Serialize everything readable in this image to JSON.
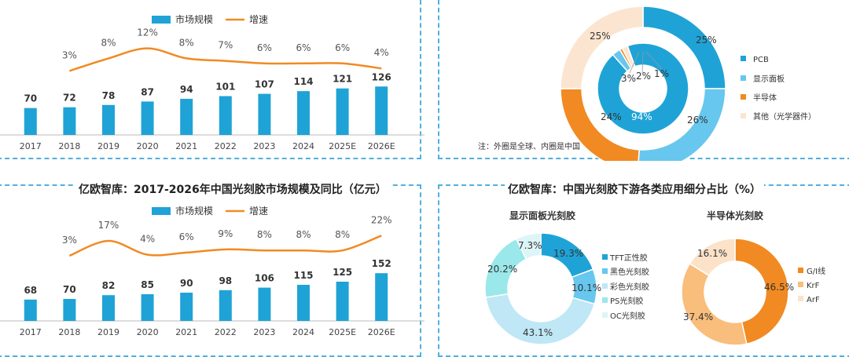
{
  "colors": {
    "bar": "#1fa3d6",
    "line": "#f18a22",
    "pcb": "#1fa3d6",
    "display": "#67c7ee",
    "semi": "#f18a22",
    "other": "#fbe5d0"
  },
  "chart_data": [
    {
      "id": "global-market",
      "type": "bar",
      "title": "",
      "legend": [
        "市场规模",
        "增速"
      ],
      "categories": [
        "2017",
        "2018",
        "2019",
        "2020",
        "2021",
        "2022",
        "2023",
        "2024",
        "2025E",
        "2026E"
      ],
      "series": [
        {
          "name": "市场规模",
          "type": "bar",
          "values": [
            70,
            72,
            78,
            87,
            94,
            101,
            107,
            114,
            121,
            126
          ]
        },
        {
          "name": "增速",
          "type": "line",
          "values": [
            null,
            3,
            8,
            12,
            8,
            7,
            6,
            6,
            6,
            4
          ],
          "labels": [
            "",
            "3%",
            "8%",
            "12%",
            "8%",
            "7%",
            "6%",
            "6%",
            "6%",
            "4%"
          ]
        }
      ]
    },
    {
      "id": "global-vs-china-donut",
      "type": "pie",
      "legend": [
        "PCB",
        "显示面板",
        "半导体",
        "其他（光学器件）"
      ],
      "outer_ring_global": [
        25,
        26,
        24,
        25
      ],
      "outer_labels": [
        "25%",
        "26%",
        "24%",
        "25%"
      ],
      "inner_ring_china": [
        94,
        3,
        1,
        2
      ],
      "inner_labels": [
        "94%",
        "3%",
        "1%",
        "2%"
      ],
      "note": "注：外圈是全球、内圈是中国"
    },
    {
      "id": "china-market",
      "type": "bar",
      "title": "亿欧智库：2017-2026年中国光刻胶市场规模及同比（亿元）",
      "legend": [
        "市场规模",
        "增速"
      ],
      "categories": [
        "2017",
        "2018",
        "2019",
        "2020",
        "2021",
        "2022",
        "2023",
        "2024",
        "2025E",
        "2026E"
      ],
      "series": [
        {
          "name": "市场规模",
          "type": "bar",
          "values": [
            68,
            70,
            82,
            85,
            90,
            98,
            106,
            115,
            125,
            152
          ]
        },
        {
          "name": "增速",
          "type": "line",
          "values": [
            null,
            3,
            17,
            4,
            6,
            9,
            8,
            8,
            8,
            22
          ],
          "labels": [
            "",
            "3%",
            "17%",
            "4%",
            "6%",
            "9%",
            "8%",
            "8%",
            "8%",
            "22%"
          ]
        }
      ]
    },
    {
      "id": "china-downstream",
      "type": "pie",
      "title": "亿欧智库：中国光刻胶下游各类应用细分占比（%）",
      "charts": [
        {
          "subtitle": "显示面板光刻胶",
          "legend": [
            "TFT正性胶",
            "黑色光刻胶",
            "彩色光刻胶",
            "PS光刻胶",
            "OC光刻胶"
          ],
          "values": [
            19.3,
            10.1,
            43.1,
            20.2,
            7.3
          ],
          "labels": [
            "19.3%",
            "10.1%",
            "43.1%",
            "20.2%",
            "7.3%"
          ]
        },
        {
          "subtitle": "半导体光刻胶",
          "legend": [
            "G/I线",
            "KrF",
            "ArF"
          ],
          "values": [
            46.5,
            37.4,
            16.1
          ],
          "labels": [
            "46.5%",
            "37.4%",
            "16.1%"
          ]
        }
      ]
    }
  ]
}
